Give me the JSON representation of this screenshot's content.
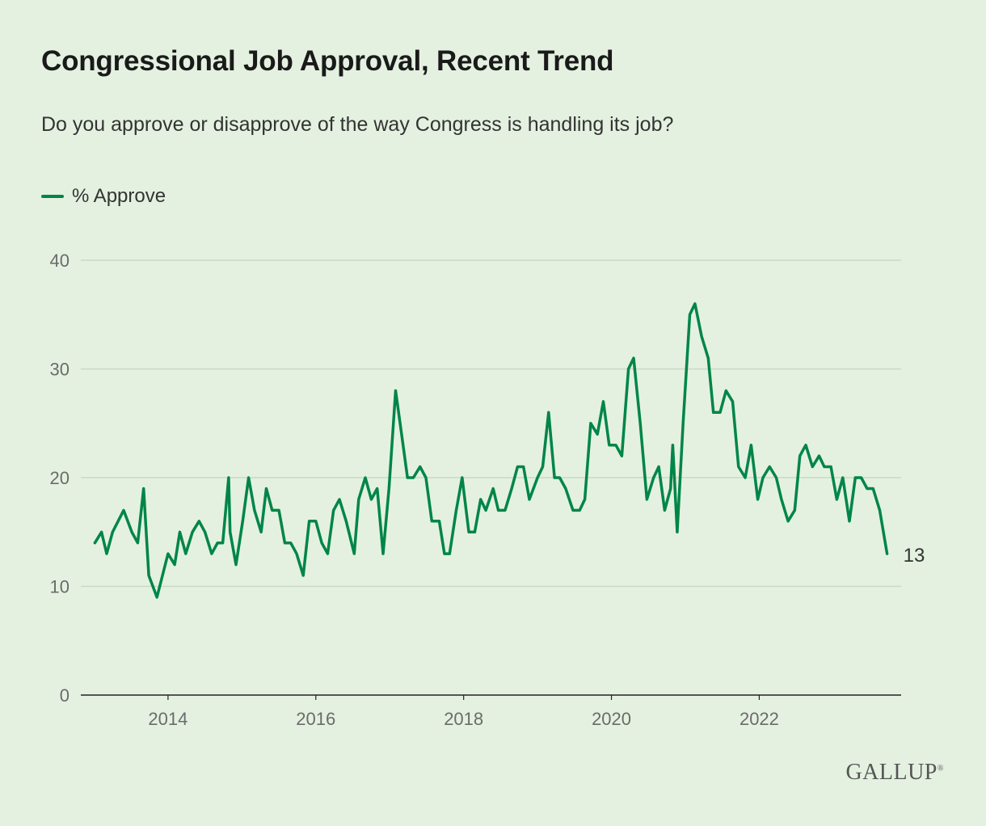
{
  "chart_data": {
    "type": "line",
    "title": "Congressional Job Approval, Recent Trend",
    "subtitle": "Do you approve or disapprove of the way Congress is handling its job?",
    "xlabel": "",
    "ylabel": "",
    "xlim": [
      2012.82,
      2023.92
    ],
    "ylim": [
      0,
      40
    ],
    "yticks": [
      0,
      10,
      20,
      30,
      40
    ],
    "xticks": [
      2014,
      2016,
      2018,
      2020,
      2022
    ],
    "grid": true,
    "legend_position": "top-left",
    "series": [
      {
        "name": "% Approve",
        "color": "#008548",
        "end_label": "13",
        "x": [
          2013.01,
          2013.1,
          2013.17,
          2013.25,
          2013.4,
          2013.51,
          2013.59,
          2013.67,
          2013.74,
          2013.85,
          2014.0,
          2014.09,
          2014.16,
          2014.24,
          2014.33,
          2014.42,
          2014.5,
          2014.59,
          2014.67,
          2014.74,
          2014.82,
          2014.84,
          2014.92,
          2015.01,
          2015.09,
          2015.17,
          2015.26,
          2015.33,
          2015.41,
          2015.5,
          2015.58,
          2015.66,
          2015.74,
          2015.83,
          2015.91,
          2016.0,
          2016.08,
          2016.16,
          2016.24,
          2016.32,
          2016.41,
          2016.52,
          2016.58,
          2016.67,
          2016.75,
          2016.83,
          2016.91,
          2016.99,
          2017.08,
          2017.16,
          2017.24,
          2017.32,
          2017.41,
          2017.49,
          2017.57,
          2017.67,
          2017.74,
          2017.81,
          2017.9,
          2017.98,
          2018.07,
          2018.15,
          2018.23,
          2018.3,
          2018.4,
          2018.47,
          2018.56,
          2018.65,
          2018.73,
          2018.81,
          2018.89,
          2019.0,
          2019.07,
          2019.15,
          2019.23,
          2019.3,
          2019.38,
          2019.48,
          2019.57,
          2019.64,
          2019.72,
          2019.81,
          2019.89,
          2019.97,
          2020.06,
          2020.14,
          2020.23,
          2020.3,
          2020.39,
          2020.48,
          2020.57,
          2020.64,
          2020.72,
          2020.8,
          2020.83,
          2020.89,
          2020.97,
          2021.06,
          2021.13,
          2021.22,
          2021.31,
          2021.38,
          2021.47,
          2021.55,
          2021.64,
          2021.72,
          2021.81,
          2021.89,
          2021.98,
          2022.05,
          2022.14,
          2022.23,
          2022.3,
          2022.39,
          2022.48,
          2022.55,
          2022.63,
          2022.72,
          2022.81,
          2022.88,
          2022.97,
          2023.05,
          2023.13,
          2023.22,
          2023.3,
          2023.38,
          2023.46,
          2023.54,
          2023.63,
          2023.73
        ],
        "values": [
          14,
          15,
          13,
          15,
          17,
          15,
          14,
          19,
          11,
          9,
          13,
          12,
          15,
          13,
          15,
          16,
          15,
          13,
          14,
          14,
          20,
          15,
          12,
          16,
          20,
          17,
          15,
          19,
          17,
          17,
          14,
          14,
          13,
          11,
          16,
          16,
          14,
          13,
          17,
          18,
          16,
          13,
          18,
          20,
          18,
          19,
          13,
          19,
          28,
          24,
          20,
          20,
          21,
          20,
          16,
          16,
          13,
          13,
          17,
          20,
          15,
          15,
          18,
          17,
          19,
          17,
          17,
          19,
          21,
          21,
          18,
          20,
          21,
          26,
          20,
          20,
          19,
          17,
          17,
          18,
          25,
          24,
          27,
          23,
          23,
          22,
          30,
          31,
          25,
          18,
          20,
          21,
          17,
          19,
          23,
          15,
          25,
          35,
          36,
          33,
          31,
          26,
          26,
          28,
          27,
          21,
          20,
          23,
          18,
          20,
          21,
          20,
          18,
          16,
          17,
          22,
          23,
          21,
          22,
          21,
          21,
          18,
          20,
          16,
          20,
          20,
          19,
          19,
          17,
          13
        ]
      }
    ]
  },
  "logo": "GALLUP"
}
